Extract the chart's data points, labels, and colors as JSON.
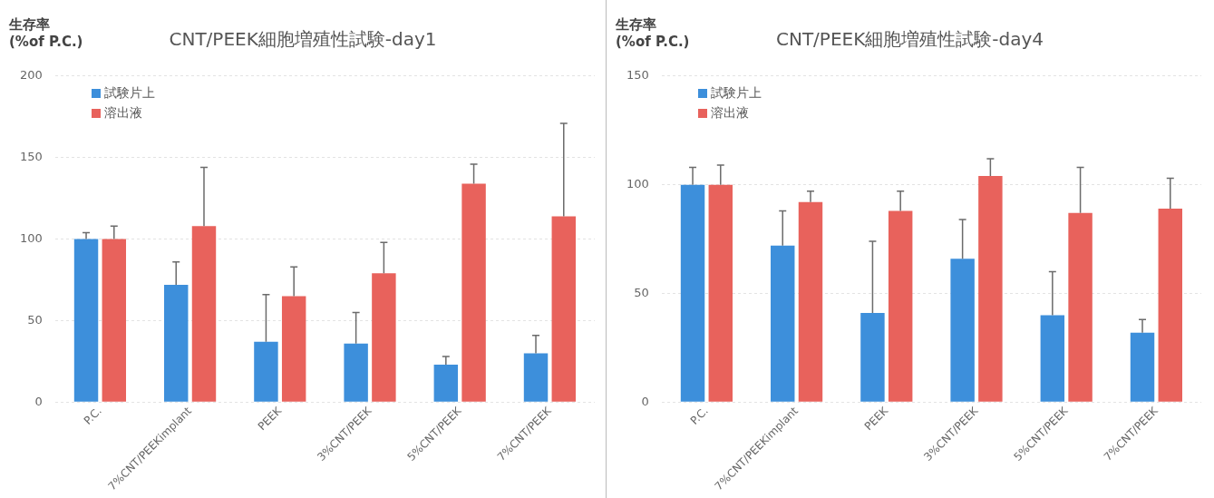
{
  "chart_data": [
    {
      "type": "bar",
      "title": "CNT/PEEK細胞増殖性試験-day1",
      "ylabel": "生存率\n(%of P.C.)",
      "categories": [
        "P.C.",
        "7%CNT/PEEKimplant",
        "PEEK",
        "3%CNT/PEEK",
        "5%CNT/PEEK",
        "7%CNT/PEEK"
      ],
      "series": [
        {
          "name": "試験片上",
          "color": "#3d8fdb",
          "values": [
            100,
            72,
            37,
            36,
            23,
            30
          ],
          "errors": [
            [
              100,
              104
            ],
            [
              72,
              86
            ],
            [
              37,
              66
            ],
            [
              36,
              55
            ],
            [
              23,
              28
            ],
            [
              30,
              41
            ]
          ]
        },
        {
          "name": "溶出液",
          "color": "#e8625c",
          "values": [
            100,
            108,
            65,
            79,
            134,
            114
          ],
          "errors": [
            [
              100,
              108
            ],
            [
              108,
              144
            ],
            [
              65,
              83
            ],
            [
              79,
              98
            ],
            [
              134,
              146
            ],
            [
              114,
              171
            ]
          ]
        }
      ],
      "ylim": [
        0,
        200
      ],
      "yticks": [
        0,
        50,
        100,
        150,
        200
      ],
      "grid": "y",
      "legend": "top left"
    },
    {
      "type": "bar",
      "title": "CNT/PEEK細胞増殖性試験-day4",
      "ylabel": "生存率\n(%of P.C.)",
      "categories": [
        "P.C.",
        "7%CNT/PEEKimplant",
        "PEEK",
        "3%CNT/PEEK",
        "5%CNT/PEEK",
        "7%CNT/PEEK"
      ],
      "series": [
        {
          "name": "試験片上",
          "color": "#3d8fdb",
          "values": [
            100,
            72,
            41,
            66,
            40,
            32
          ],
          "errors": [
            [
              100,
              108
            ],
            [
              72,
              88
            ],
            [
              41,
              74
            ],
            [
              66,
              84
            ],
            [
              40,
              60
            ],
            [
              32,
              38
            ]
          ]
        },
        {
          "name": "溶出液",
          "color": "#e8625c",
          "values": [
            100,
            92,
            88,
            104,
            87,
            89
          ],
          "errors": [
            [
              100,
              109
            ],
            [
              92,
              97
            ],
            [
              88,
              97
            ],
            [
              104,
              112
            ],
            [
              87,
              108
            ],
            [
              89,
              103
            ]
          ]
        }
      ],
      "ylim": [
        0,
        150
      ],
      "yticks": [
        0,
        50,
        100,
        150
      ],
      "grid": "y",
      "legend": "top left"
    }
  ]
}
